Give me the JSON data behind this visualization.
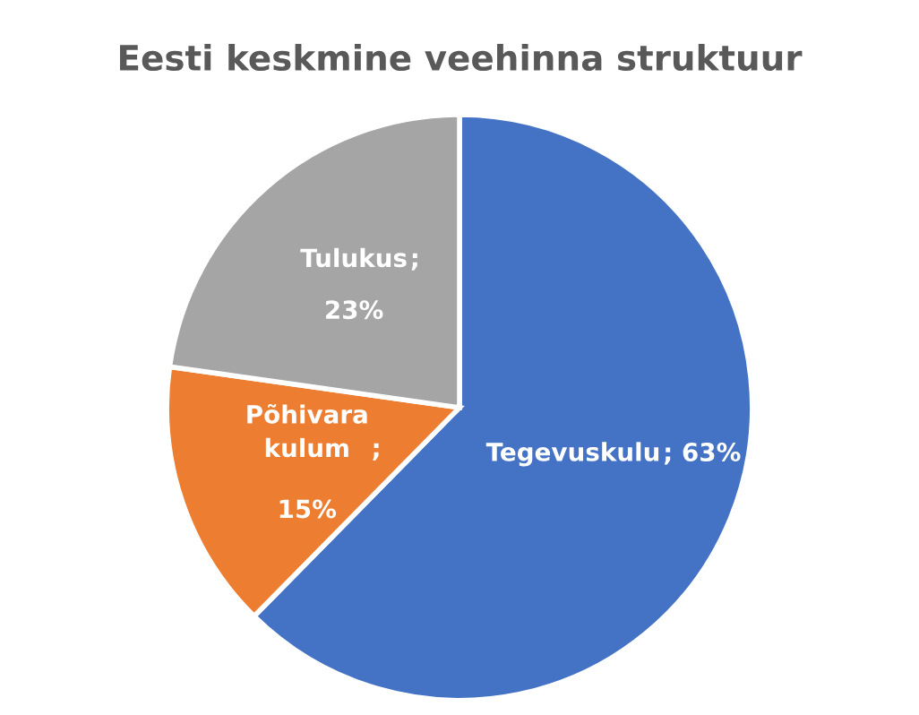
{
  "chart_data": {
    "type": "pie",
    "title": "Eesti keskmine veehinna struktuur",
    "categories": [
      "Tegevuskulu",
      "Põhivara kulum",
      "Tulukus"
    ],
    "values": [
      63,
      15,
      23
    ],
    "colors": [
      "#4472c4",
      "#ed7d31",
      "#a5a5a5"
    ],
    "value_labels": [
      "; 63%",
      ";\n15%",
      ";\n23%"
    ]
  }
}
